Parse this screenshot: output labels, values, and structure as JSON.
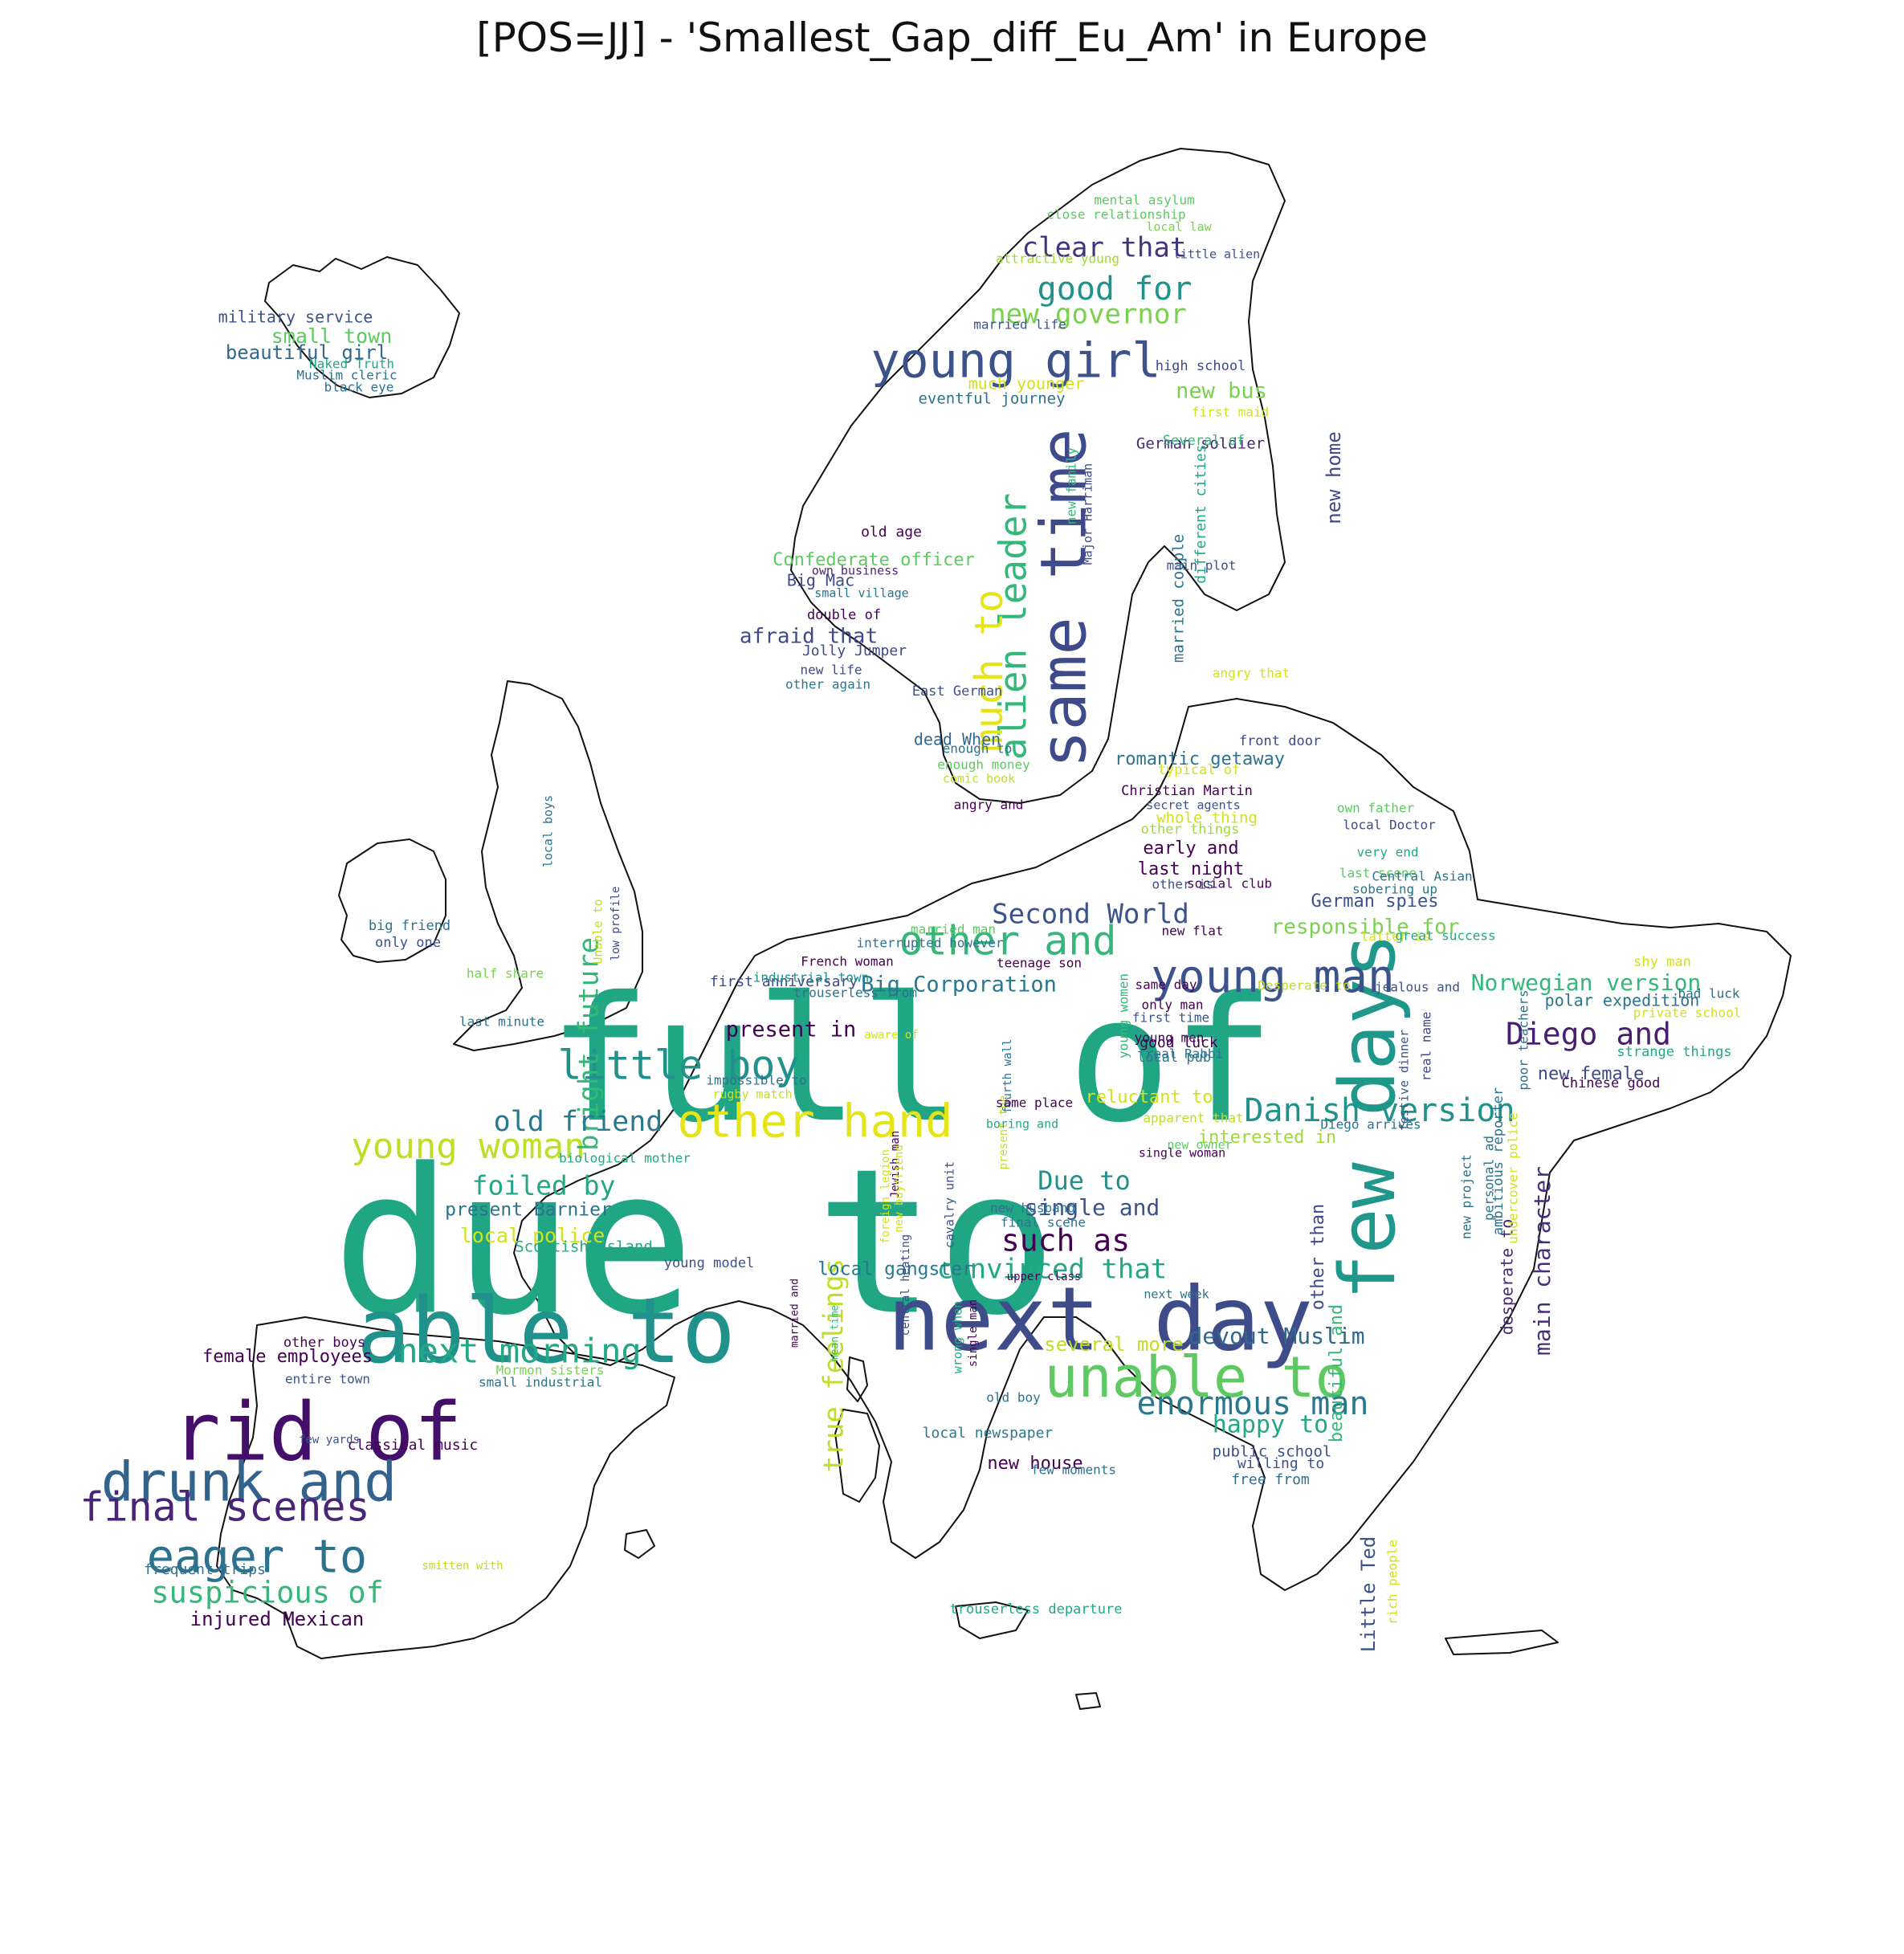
{
  "title": "[POS=JJ] - 'Smallest_Gap_diff_Eu_Am' in Europe",
  "palette": "viridis",
  "outline_color": "#111111",
  "words": [
    {
      "text": "due to",
      "color": "#21a685"
    },
    {
      "text": "full of",
      "color": "#21a685"
    },
    {
      "text": "next day",
      "color": "#3e4c8a"
    },
    {
      "text": "able to",
      "color": "#21918c"
    },
    {
      "text": "rid of",
      "color": "#440f6a"
    },
    {
      "text": "few days",
      "color": "#1f988b"
    },
    {
      "text": "same time",
      "color": "#3e4a89"
    },
    {
      "text": "unable to",
      "color": "#5ec962"
    },
    {
      "text": "drunk and",
      "color": "#33638d"
    },
    {
      "text": "young girl",
      "color": "#3b528b"
    },
    {
      "text": "young man",
      "color": "#3b528b"
    },
    {
      "text": "eager to",
      "color": "#2c728e"
    },
    {
      "text": "other hand",
      "color": "#e5e419"
    },
    {
      "text": "final scenes",
      "color": "#482576"
    },
    {
      "text": "alien leader",
      "color": "#35b779"
    },
    {
      "text": "much to",
      "color": "#e5e419"
    },
    {
      "text": "little boy",
      "color": "#21918c"
    },
    {
      "text": "other and",
      "color": "#35b779"
    },
    {
      "text": "young woman",
      "color": "#bddf26"
    },
    {
      "text": "next morning",
      "color": "#22a884"
    },
    {
      "text": "enormous man",
      "color": "#2a788e"
    },
    {
      "text": "Danish version",
      "color": "#21918c"
    },
    {
      "text": "Diego and",
      "color": "#481f70"
    },
    {
      "text": "suspicious of",
      "color": "#35b779"
    },
    {
      "text": "good for",
      "color": "#21918c"
    },
    {
      "text": "new governor",
      "color": "#7ad151"
    },
    {
      "text": "clear that",
      "color": "#46337e"
    },
    {
      "text": "bright future",
      "color": "#35b779"
    },
    {
      "text": "true feelings",
      "color": "#bddf26"
    },
    {
      "text": "Second World",
      "color": "#3b528b"
    },
    {
      "text": "convinced that",
      "color": "#22a884"
    },
    {
      "text": "such as",
      "color": "#440154"
    },
    {
      "text": "old friend",
      "color": "#2a788e"
    },
    {
      "text": "foiled by",
      "color": "#22a884"
    },
    {
      "text": "Due to",
      "color": "#21918c"
    },
    {
      "text": "Norwegian version",
      "color": "#35b779"
    },
    {
      "text": "happy to",
      "color": "#22a884"
    },
    {
      "text": "devout Muslim",
      "color": "#31688e"
    },
    {
      "text": "single and",
      "color": "#3b528b"
    },
    {
      "text": "main character",
      "color": "#472d7b"
    },
    {
      "text": "responsible for",
      "color": "#7ad151"
    },
    {
      "text": "present in",
      "color": "#440154"
    },
    {
      "text": "Big Corporation",
      "color": "#2a788e"
    },
    {
      "text": "new home",
      "color": "#3e4a89"
    },
    {
      "text": "several more",
      "color": "#bddf26"
    },
    {
      "text": "local police",
      "color": "#d2e21b"
    },
    {
      "text": "present Barnier",
      "color": "#2c728e"
    },
    {
      "text": "injured Mexican",
      "color": "#440154"
    },
    {
      "text": "Little Ted",
      "color": "#3b528b"
    },
    {
      "text": "afraid that",
      "color": "#3e4a89"
    },
    {
      "text": "small town",
      "color": "#5ec962"
    },
    {
      "text": "romantic getaway",
      "color": "#2c728e"
    },
    {
      "text": "new bus",
      "color": "#7ad151"
    },
    {
      "text": "local gangster",
      "color": "#2a788e"
    },
    {
      "text": "beautiful girl",
      "color": "#31688e"
    },
    {
      "text": "interested in",
      "color": "#a0da39"
    },
    {
      "text": "female employees",
      "color": "#440154"
    },
    {
      "text": "German spies",
      "color": "#3b528b"
    },
    {
      "text": "last night",
      "color": "#440154"
    },
    {
      "text": "reluctant to",
      "color": "#d2e21b"
    },
    {
      "text": "Confederate officer",
      "color": "#5ec962"
    },
    {
      "text": "beautiful and",
      "color": "#35b779"
    },
    {
      "text": "other than",
      "color": "#3e4a89"
    },
    {
      "text": "early and",
      "color": "#440154"
    },
    {
      "text": "new female",
      "color": "#3e4a89"
    },
    {
      "text": "married couple",
      "color": "#2c728e"
    },
    {
      "text": "desperate to",
      "color": "#482878"
    },
    {
      "text": "much younger",
      "color": "#d2e21b"
    },
    {
      "text": "dead When",
      "color": "#31688e"
    },
    {
      "text": "public school",
      "color": "#3b528b"
    },
    {
      "text": "new house",
      "color": "#440154"
    },
    {
      "text": "military service",
      "color": "#3b528b"
    },
    {
      "text": "Big Mac",
      "color": "#3e4a89"
    },
    {
      "text": "eventful journey",
      "color": "#2c728e"
    },
    {
      "text": "German soldier",
      "color": "#482878"
    },
    {
      "text": "Scottish island",
      "color": "#22a884"
    },
    {
      "text": "local newspaper",
      "color": "#2a788e"
    },
    {
      "text": "classical music",
      "color": "#440154"
    },
    {
      "text": "frequent trips",
      "color": "#2c728e"
    },
    {
      "text": "old age",
      "color": "#440154"
    },
    {
      "text": "Jolly Jumper",
      "color": "#3e4a89"
    },
    {
      "text": "first anniversary",
      "color": "#3e4a89"
    },
    {
      "text": "Diego arrives",
      "color": "#2c728e"
    },
    {
      "text": "good luck",
      "color": "#440154"
    },
    {
      "text": "local pub",
      "color": "#2a788e"
    },
    {
      "text": "willing to",
      "color": "#3b528b"
    },
    {
      "text": "free from",
      "color": "#2c728e"
    },
    {
      "text": "whole thing",
      "color": "#d2e21b"
    },
    {
      "text": "young model",
      "color": "#3b528b"
    },
    {
      "text": "mental asylum",
      "color": "#5ec962"
    },
    {
      "text": "close relationship",
      "color": "#5ec962"
    },
    {
      "text": "local law",
      "color": "#7ad151"
    },
    {
      "text": "attractive young",
      "color": "#a0da39"
    },
    {
      "text": "little alien",
      "color": "#3b528b"
    },
    {
      "text": "married life",
      "color": "#3b528b"
    },
    {
      "text": "high school",
      "color": "#3e4a89"
    },
    {
      "text": "first maid",
      "color": "#d2e21b"
    },
    {
      "text": "Several of",
      "color": "#35b779"
    },
    {
      "text": "new family",
      "color": "#35b779"
    },
    {
      "text": "Major Harriman",
      "color": "#3e4a89"
    },
    {
      "text": "different cities",
      "color": "#22a884"
    },
    {
      "text": "main plot",
      "color": "#3b528b"
    },
    {
      "text": "own business",
      "color": "#482878"
    },
    {
      "text": "small village",
      "color": "#2c728e"
    },
    {
      "text": "double of",
      "color": "#440154"
    },
    {
      "text": "new life",
      "color": "#3e4a89"
    },
    {
      "text": "other again",
      "color": "#2a788e"
    },
    {
      "text": "angry that",
      "color": "#d2e21b"
    },
    {
      "text": "East German",
      "color": "#3b528b"
    },
    {
      "text": "enough to",
      "color": "#2c728e"
    },
    {
      "text": "enough money",
      "color": "#5ec962"
    },
    {
      "text": "comic book",
      "color": "#bddf26"
    },
    {
      "text": "angry and",
      "color": "#440154"
    },
    {
      "text": "front door",
      "color": "#3e4a89"
    },
    {
      "text": "typical of",
      "color": "#d2e21b"
    },
    {
      "text": "Christian Martin",
      "color": "#440154"
    },
    {
      "text": "secret agents",
      "color": "#3b528b"
    },
    {
      "text": "other things",
      "color": "#a0da39"
    },
    {
      "text": "own father",
      "color": "#5ec962"
    },
    {
      "text": "local Doctor",
      "color": "#3e4a89"
    },
    {
      "text": "very end",
      "color": "#22a884"
    },
    {
      "text": "last scene",
      "color": "#5ec962"
    },
    {
      "text": "Central Asian",
      "color": "#2c728e"
    },
    {
      "text": "sobering up",
      "color": "#2a788e"
    },
    {
      "text": "other is",
      "color": "#3b528b"
    },
    {
      "text": "social club",
      "color": "#440154"
    },
    {
      "text": "new flat",
      "color": "#440154"
    },
    {
      "text": "latter is",
      "color": "#d2e21b"
    },
    {
      "text": "great success",
      "color": "#22a884"
    },
    {
      "text": "shy man",
      "color": "#d2e21b"
    },
    {
      "text": "bad luck",
      "color": "#2c728e"
    },
    {
      "text": "polar expedition",
      "color": "#2c728e"
    },
    {
      "text": "private school",
      "color": "#d2e21b"
    },
    {
      "text": "strange things",
      "color": "#22a884"
    },
    {
      "text": "Chinese good",
      "color": "#440154"
    },
    {
      "text": "Desperate to",
      "color": "#bddf26"
    },
    {
      "text": "jealous and",
      "color": "#3b528b"
    },
    {
      "text": "poor teachers",
      "color": "#2c728e"
    },
    {
      "text": "real name",
      "color": "#3e4a89"
    },
    {
      "text": "festive dinner",
      "color": "#3b528b"
    },
    {
      "text": "ambitious reporter",
      "color": "#2c728e"
    },
    {
      "text": "undercover police",
      "color": "#d2e21b"
    },
    {
      "text": "personal ad",
      "color": "#2c728e"
    },
    {
      "text": "new project",
      "color": "#2c728e"
    },
    {
      "text": "rich people",
      "color": "#d2e21b"
    },
    {
      "text": "same day",
      "color": "#440154"
    },
    {
      "text": "only man",
      "color": "#440154"
    },
    {
      "text": "first time",
      "color": "#3b528b"
    },
    {
      "text": "young men",
      "color": "#440154"
    },
    {
      "text": "real Rabbi",
      "color": "#2c728e"
    },
    {
      "text": "young women",
      "color": "#35b779"
    },
    {
      "text": "teenage son",
      "color": "#440154"
    },
    {
      "text": "married man",
      "color": "#5ec962"
    },
    {
      "text": "interrupted however",
      "color": "#2c728e"
    },
    {
      "text": "French woman",
      "color": "#440154"
    },
    {
      "text": "industrial town",
      "color": "#21918c"
    },
    {
      "text": "trouserless from",
      "color": "#2c728e"
    },
    {
      "text": "aware of",
      "color": "#d2e21b"
    },
    {
      "text": "impossible to",
      "color": "#2c728e"
    },
    {
      "text": "rugby match",
      "color": "#bddf26"
    },
    {
      "text": "biological mother",
      "color": "#22a884"
    },
    {
      "text": "fourth wall",
      "color": "#2c728e"
    },
    {
      "text": "present the",
      "color": "#bddf26"
    },
    {
      "text": "same place",
      "color": "#440154"
    },
    {
      "text": "boring and",
      "color": "#22a884"
    },
    {
      "text": "apparent that",
      "color": "#bddf26"
    },
    {
      "text": "new owner",
      "color": "#5ec962"
    },
    {
      "text": "single woman",
      "color": "#440154"
    },
    {
      "text": "new husband",
      "color": "#2c728e"
    },
    {
      "text": "final scene",
      "color": "#2c728e"
    },
    {
      "text": "upper class",
      "color": "#440154"
    },
    {
      "text": "next week",
      "color": "#2c728e"
    },
    {
      "text": "cavalry unit",
      "color": "#3b528b"
    },
    {
      "text": "Jewish man",
      "color": "#440154"
    },
    {
      "text": "foreign legion",
      "color": "#d2e21b"
    },
    {
      "text": "new boyfriend",
      "color": "#d2e21b"
    },
    {
      "text": "mean time",
      "color": "#35b779"
    },
    {
      "text": "married and",
      "color": "#440154"
    },
    {
      "text": "central heating",
      "color": "#3e4a89"
    },
    {
      "text": "wrong when",
      "color": "#22a884"
    },
    {
      "text": "single man",
      "color": "#440154"
    },
    {
      "text": "old boy",
      "color": "#2c728e"
    },
    {
      "text": "few moments",
      "color": "#2c728e"
    },
    {
      "text": "trouserless departure",
      "color": "#22a884"
    },
    {
      "text": "local boys",
      "color": "#2c728e"
    },
    {
      "text": "Unable to",
      "color": "#bddf26"
    },
    {
      "text": "low profile",
      "color": "#3e4a89"
    },
    {
      "text": "big friend",
      "color": "#2c728e"
    },
    {
      "text": "only one",
      "color": "#3b528b"
    },
    {
      "text": "half share",
      "color": "#7ad151"
    },
    {
      "text": "last minute",
      "color": "#2c728e"
    },
    {
      "text": "Naked Truth",
      "color": "#22a884"
    },
    {
      "text": "Muslim cleric",
      "color": "#2c728e"
    },
    {
      "text": "black eye",
      "color": "#2c728e"
    },
    {
      "text": "other boys",
      "color": "#440154"
    },
    {
      "text": "entire town",
      "color": "#3b528b"
    },
    {
      "text": "Mormon sisters",
      "color": "#7ad151"
    },
    {
      "text": "small industrial",
      "color": "#2c728e"
    },
    {
      "text": "few yards",
      "color": "#3b528b"
    },
    {
      "text": "smitten with",
      "color": "#bddf26"
    }
  ]
}
